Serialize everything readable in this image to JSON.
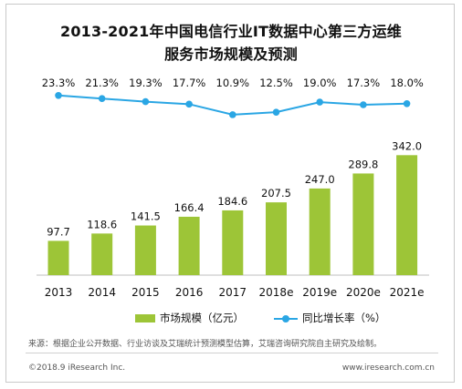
{
  "title_line1": "2013-2021年中国电信行业IT数据中心第三方运维",
  "title_line2": "服务市场规模及预测",
  "legend": {
    "bar": "市场规模（亿元）",
    "line": "同比增长率（%）"
  },
  "footer": {
    "source": "来源：根据企业公开数据、行业访谈及艾瑞统计预测模型估算，艾瑞咨询研究院自主研究及绘制。",
    "copyright": "©2018.9 iResearch Inc.",
    "site": "www.iresearch.com.cn"
  },
  "colors": {
    "bar": "#9dc537",
    "line": "#2aa6e4"
  },
  "chart_data": {
    "type": "bar",
    "categories": [
      "2013",
      "2014",
      "2015",
      "2016",
      "2017",
      "2018e",
      "2019e",
      "2020e",
      "2021e"
    ],
    "series": [
      {
        "name": "市场规模（亿元）",
        "type": "bar",
        "values": [
          97.7,
          118.6,
          141.5,
          166.4,
          184.6,
          207.5,
          247.0,
          289.8,
          342.0
        ],
        "labels": [
          "97.7",
          "118.6",
          "141.5",
          "166.4",
          "184.6",
          "207.5",
          "247.0",
          "289.8",
          "342.0"
        ]
      },
      {
        "name": "同比增长率（%）",
        "type": "line",
        "values": [
          23.3,
          21.3,
          19.3,
          17.7,
          10.9,
          12.5,
          19.0,
          17.3,
          18.0
        ],
        "labels": [
          "23.3%",
          "21.3%",
          "19.3%",
          "17.7%",
          "10.9%",
          "12.5%",
          "19.0%",
          "17.3%",
          "18.0%"
        ]
      }
    ],
    "legend_position": "bottom",
    "grid": false
  }
}
